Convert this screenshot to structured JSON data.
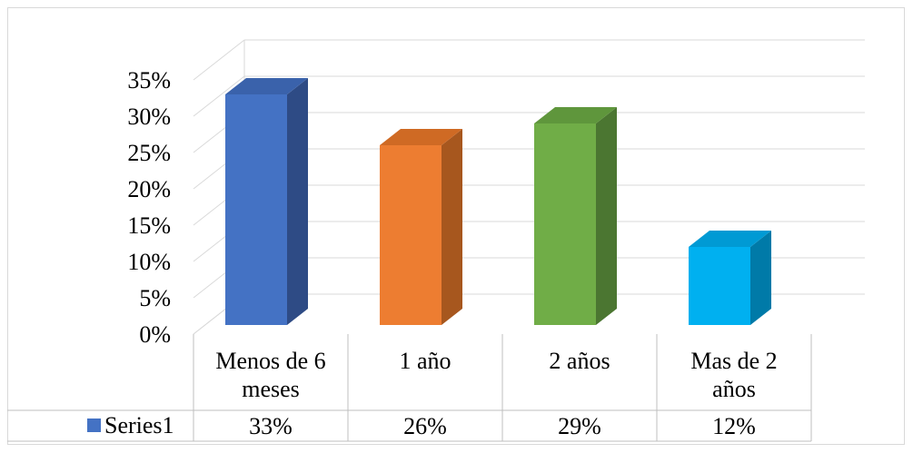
{
  "chart_data": {
    "type": "bar",
    "style": "3d-column-with-data-table",
    "categories": [
      [
        "Menos de 6",
        "meses"
      ],
      [
        "1 año"
      ],
      [
        "2 años"
      ],
      [
        "Mas de 2",
        "años"
      ]
    ],
    "series": [
      {
        "name": "Series1",
        "values": [
          0.33,
          0.26,
          0.29,
          0.12
        ],
        "value_labels": [
          "33%",
          "26%",
          "29%",
          "12%"
        ]
      }
    ],
    "ylim": [
      0,
      0.35
    ],
    "yticks": [
      0,
      0.05,
      0.1,
      0.15,
      0.2,
      0.25,
      0.3,
      0.35
    ],
    "ytick_labels": [
      "0%",
      "5%",
      "10%",
      "15%",
      "20%",
      "25%",
      "30%",
      "35%"
    ],
    "grid": true,
    "legend_in_table": true,
    "bar_colors": [
      "#4472C4",
      "#ED7D31",
      "#70AD47",
      "#00B0F0"
    ],
    "bar_side_colors": [
      "#2E4B85",
      "#A7571E",
      "#4B7631",
      "#007AA8"
    ],
    "bar_top_colors": [
      "#3A62AB",
      "#CF6A24",
      "#5F963C",
      "#009AD4"
    ],
    "legend_key_color": "#4472C4",
    "gridline_color": "#d9d9d9"
  }
}
